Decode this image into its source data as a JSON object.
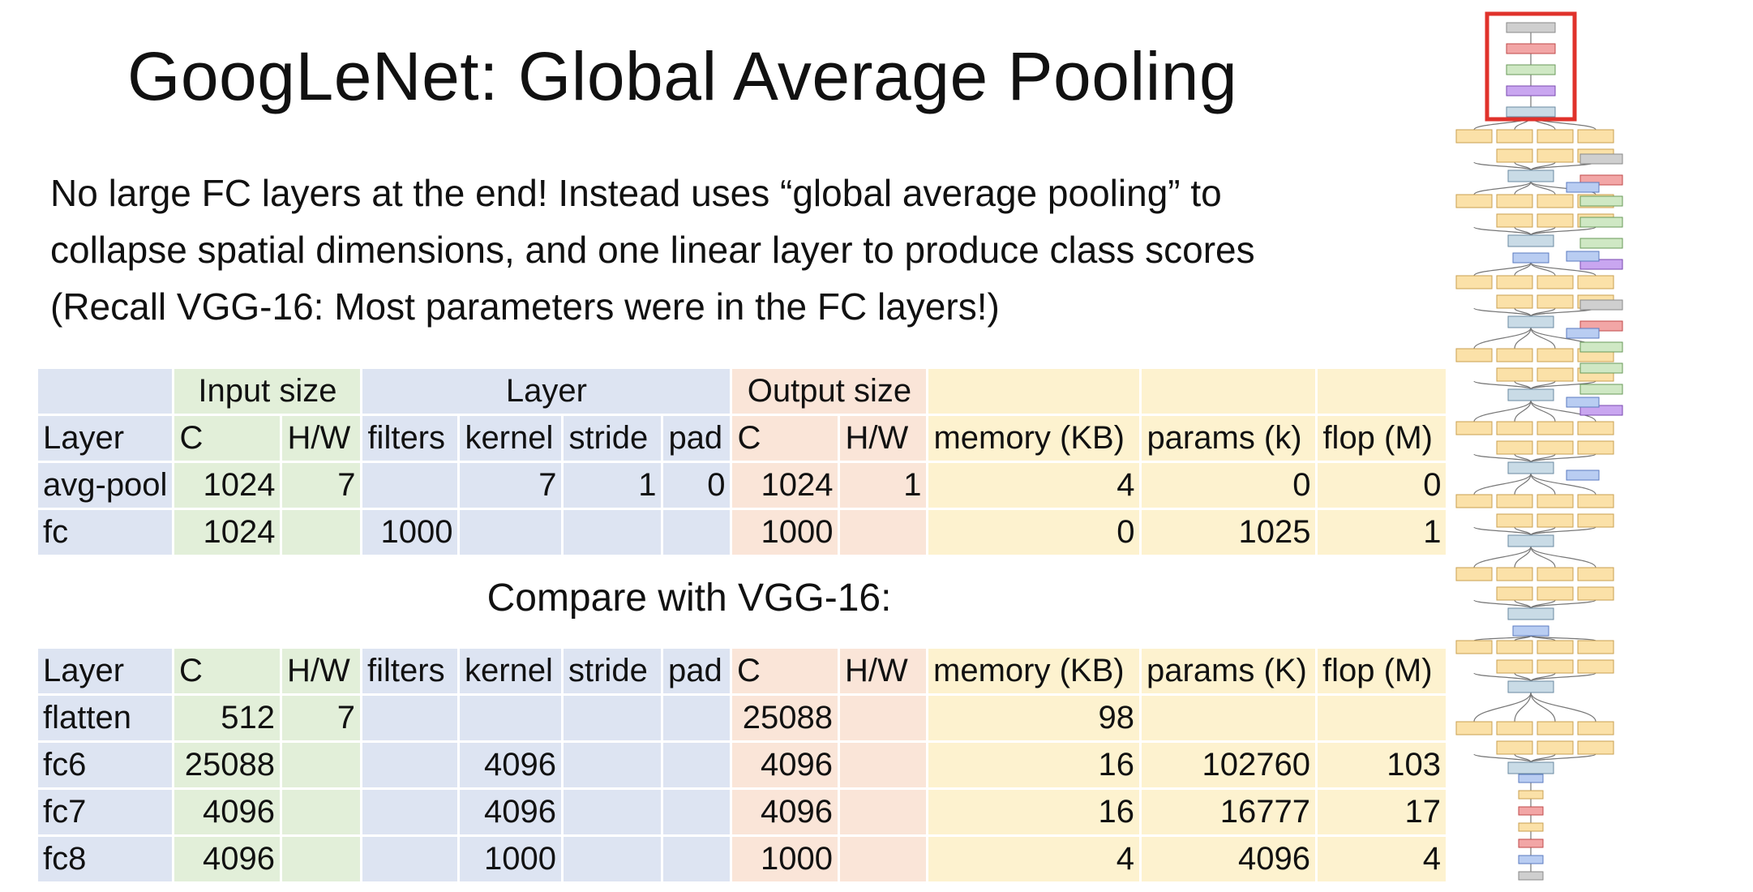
{
  "title": "GoogLeNet: Global Average Pooling",
  "bullets": [
    "No large FC layers at the end! Instead uses “global average pooling” to",
    "collapse spatial dimensions, and one linear layer to produce class scores",
    "(Recall VGG-16: Most parameters were in the FC layers!)"
  ],
  "table1": {
    "groups": [
      "Input size",
      "Layer",
      "Output size"
    ],
    "headers": [
      "Layer",
      "C",
      "H/W",
      "filters",
      "kernel",
      "stride",
      "pad",
      "C",
      "H/W",
      "memory (KB)",
      "params (k)",
      "flop (M)"
    ],
    "rows": [
      [
        "avg-pool",
        "1024",
        "7",
        "",
        "7",
        "1",
        "0",
        "1024",
        "1",
        "4",
        "0",
        "0"
      ],
      [
        "fc",
        "1024",
        "",
        "1000",
        "",
        "",
        "",
        "1000",
        "",
        "0",
        "1025",
        "1"
      ]
    ]
  },
  "compare_label": "Compare with VGG-16:",
  "table2": {
    "headers": [
      "Layer",
      "C",
      "H/W",
      "filters",
      "kernel",
      "stride",
      "pad",
      "C",
      "H/W",
      "memory (KB)",
      "params (K)",
      "flop (M)"
    ],
    "rows": [
      [
        "flatten",
        "512",
        "7",
        "",
        "",
        "",
        "",
        "25088",
        "",
        "98",
        "",
        ""
      ],
      [
        "fc6",
        "25088",
        "",
        "",
        "4096",
        "",
        "",
        "4096",
        "",
        "16",
        "102760",
        "103"
      ],
      [
        "fc7",
        "4096",
        "",
        "",
        "4096",
        "",
        "",
        "4096",
        "",
        "16",
        "16777",
        "17"
      ],
      [
        "fc8",
        "4096",
        "",
        "",
        "1000",
        "",
        "",
        "1000",
        "",
        "4",
        "4096",
        "4"
      ]
    ]
  },
  "colors": {
    "layer": "#dde4f2",
    "input": "#e2efd9",
    "output": "#fae5d8",
    "stats": "#fdf2cf",
    "highlight": "#e0322b"
  },
  "diagram": {
    "highlight_box": "red-outline"
  }
}
